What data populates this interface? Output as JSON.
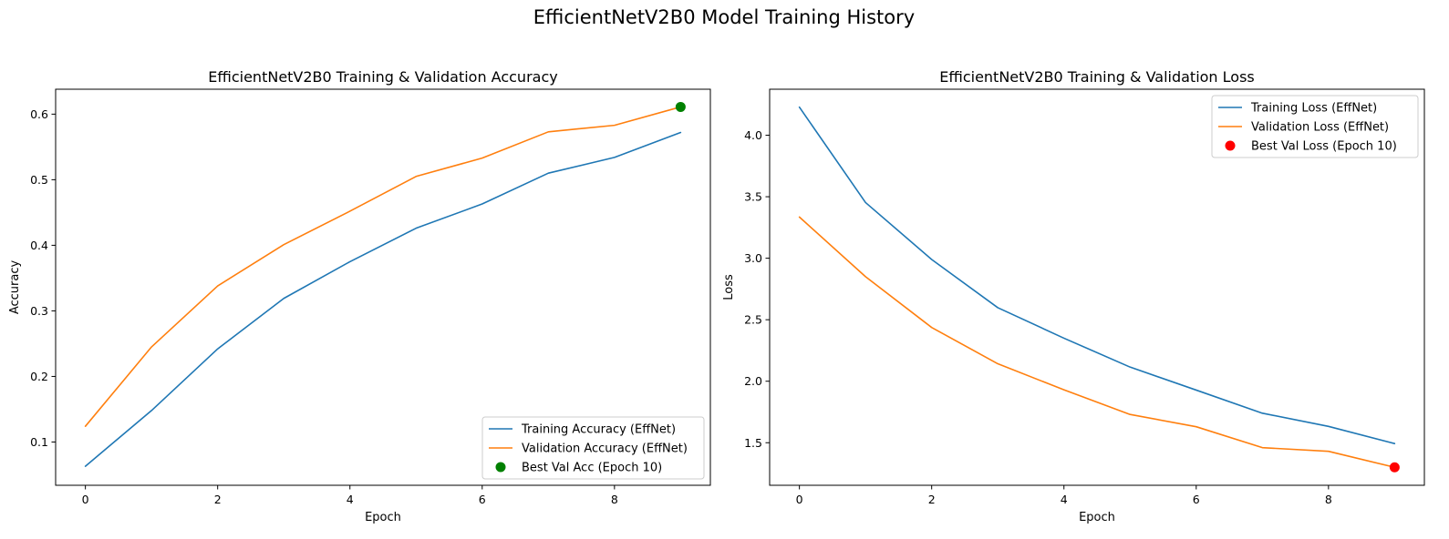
{
  "figure": {
    "suptitle": "EfficientNetV2B0 Model Training History"
  },
  "chart_data": [
    {
      "type": "line",
      "title": "EfficientNetV2B0 Training & Validation Accuracy",
      "xlabel": "Epoch",
      "ylabel": "Accuracy",
      "xlim": [
        -0.45,
        9.45
      ],
      "ylim": [
        0.034,
        0.638
      ],
      "xticks": [
        0,
        2,
        4,
        6,
        8
      ],
      "yticks": [
        0.1,
        0.2,
        0.3,
        0.4,
        0.5,
        0.6
      ],
      "x": [
        0,
        1,
        2,
        3,
        4,
        5,
        6,
        7,
        8,
        9
      ],
      "series": [
        {
          "name": "Training Accuracy (EffNet)",
          "color": "#1f77b4",
          "values": [
            0.063,
            0.148,
            0.242,
            0.319,
            0.375,
            0.426,
            0.463,
            0.51,
            0.534,
            0.572
          ]
        },
        {
          "name": "Validation Accuracy (EffNet)",
          "color": "#ff7f0e",
          "values": [
            0.124,
            0.245,
            0.338,
            0.401,
            0.452,
            0.505,
            0.533,
            0.573,
            0.583,
            0.611
          ]
        }
      ],
      "marker": {
        "name": "Best Val Acc (Epoch 10)",
        "color": "#008000",
        "x": 9,
        "y": 0.611
      },
      "grid": false,
      "legend": "lower right"
    },
    {
      "type": "line",
      "title": "EfficientNetV2B0 Training & Validation Loss",
      "xlabel": "Epoch",
      "ylabel": "Loss",
      "xlim": [
        -0.45,
        9.45
      ],
      "ylim": [
        1.154,
        4.374
      ],
      "xticks": [
        0,
        2,
        4,
        6,
        8
      ],
      "yticks": [
        1.5,
        2.0,
        2.5,
        3.0,
        3.5,
        4.0
      ],
      "x": [
        0,
        1,
        2,
        3,
        4,
        5,
        6,
        7,
        8,
        9
      ],
      "series": [
        {
          "name": "Training Loss (EffNet)",
          "color": "#1f77b4",
          "values": [
            4.228,
            3.453,
            2.99,
            2.598,
            2.35,
            2.115,
            1.928,
            1.74,
            1.633,
            1.493
          ]
        },
        {
          "name": "Validation Loss (EffNet)",
          "color": "#ff7f0e",
          "values": [
            3.335,
            2.85,
            2.437,
            2.142,
            1.93,
            1.73,
            1.63,
            1.46,
            1.43,
            1.3
          ]
        }
      ],
      "marker": {
        "name": "Best Val Loss (Epoch 10)",
        "color": "#ff0000",
        "x": 9,
        "y": 1.3
      },
      "grid": false,
      "legend": "upper right"
    }
  ]
}
